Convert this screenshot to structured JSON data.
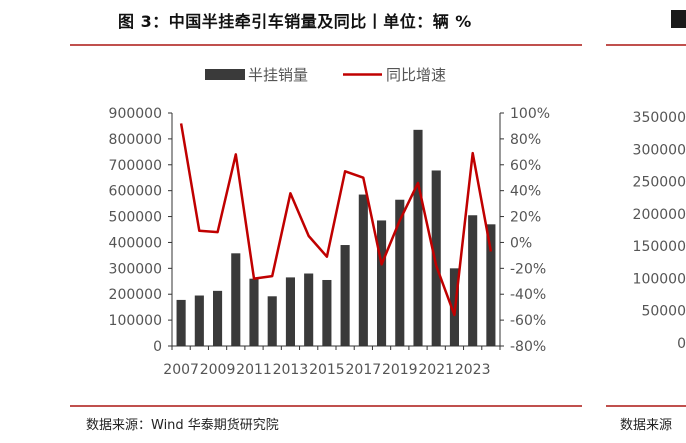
{
  "header": {
    "title": "图 3：中国半挂牵引车销量及同比丨单位：辆 %"
  },
  "footer": {
    "source": "数据来源：Wind  华泰期货研究院",
    "source_right": "数据来源"
  },
  "colors": {
    "bar": "#3a3a3a",
    "line": "#c00000",
    "rule": "#c0504d"
  },
  "chart_data": [
    {
      "type": "bar+line",
      "categories": [
        "2007",
        "2008",
        "2009",
        "2010",
        "2011",
        "2012",
        "2013",
        "2014",
        "2015",
        "2016",
        "2017",
        "2018",
        "2019",
        "2020",
        "2021",
        "2022",
        "2023",
        "2024"
      ],
      "xtick_labels": [
        "2007",
        "2009",
        "2011",
        "2013",
        "2015",
        "2017",
        "2019",
        "2021",
        "2023"
      ],
      "series": [
        {
          "name": "半挂销量",
          "type": "bar",
          "axis": "left",
          "values": [
            178000,
            195000,
            213000,
            358000,
            260000,
            192000,
            265000,
            280000,
            255000,
            390000,
            585000,
            485000,
            565000,
            835000,
            678000,
            300000,
            505000,
            470000
          ]
        },
        {
          "name": "同比增速",
          "type": "line",
          "axis": "right",
          "values": [
            92,
            9,
            8,
            68,
            -28,
            -26,
            38,
            5,
            -11,
            55,
            50,
            -17,
            17,
            46,
            -18,
            -56,
            69,
            -7
          ]
        }
      ],
      "ylim_left": [
        0,
        900000
      ],
      "yticks_left": [
        "0",
        "100000",
        "200000",
        "300000",
        "400000",
        "500000",
        "600000",
        "700000",
        "800000",
        "900000"
      ],
      "ylim_right": [
        -80,
        100
      ],
      "yticks_right": [
        "-80%",
        "-60%",
        "-40%",
        "-20%",
        "0%",
        "20%",
        "40%",
        "60%",
        "80%",
        "100%"
      ],
      "legend_position": "top-center",
      "grid": false
    },
    {
      "type": "bar",
      "yticks_left": [
        "0",
        "50000",
        "100000",
        "150000",
        "200000",
        "250000",
        "300000",
        "350000"
      ]
    }
  ]
}
